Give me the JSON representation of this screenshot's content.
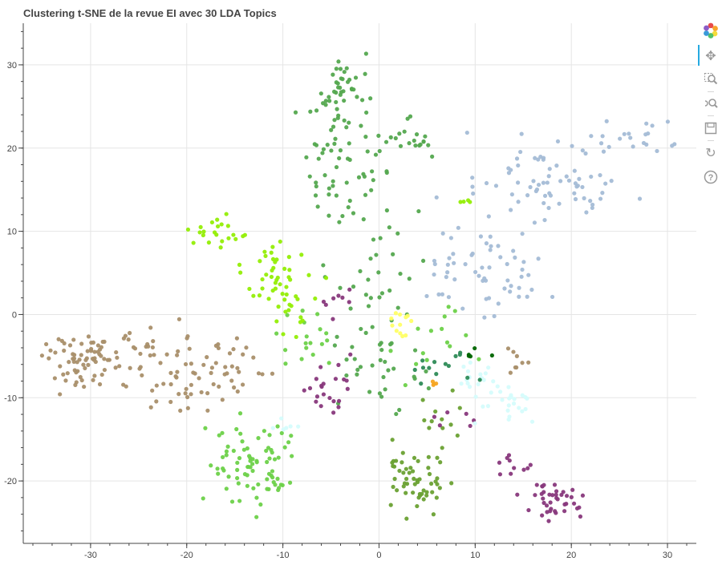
{
  "chart_data": {
    "type": "scatter",
    "title": "Clustering t-SNE de la revue EI avec 30 LDA Topics",
    "xlabel": "",
    "ylabel": "",
    "xlim": [
      -37,
      33
    ],
    "ylim": [
      -27.5,
      35
    ],
    "xticks": [
      -30,
      -20,
      -10,
      0,
      10,
      20,
      30
    ],
    "yticks": [
      -20,
      -10,
      0,
      10,
      20,
      30
    ],
    "grid": true,
    "series": [
      {
        "color": "#a98f6a",
        "clusters": [
          {
            "center": [
              -31,
              -5.5
            ],
            "spread": [
              2.2,
              1.8
            ],
            "n": 70
          },
          {
            "center": [
              -21,
              -7
            ],
            "spread": [
              3.5,
              2.5
            ],
            "n": 65
          },
          {
            "center": [
              -14,
              -7
            ],
            "spread": [
              1.5,
              1.5
            ],
            "n": 12
          },
          {
            "center": [
              -26,
              -3.0
            ],
            "spread": [
              1.2,
              1.0
            ],
            "n": 10
          },
          {
            "center": [
              14.5,
              -4.5
            ],
            "spread": [
              0.8,
              1.2
            ],
            "n": 8
          }
        ]
      },
      {
        "color": "#54a84f",
        "clusters": [
          {
            "center": [
              -4,
              28.5
            ],
            "spread": [
              1.5,
              2.0
            ],
            "n": 35
          },
          {
            "center": [
              -5,
              22.5
            ],
            "spread": [
              2.0,
              2.0
            ],
            "n": 30
          },
          {
            "center": [
              -4,
              15.5
            ],
            "spread": [
              2.5,
              2.0
            ],
            "n": 30
          },
          {
            "center": [
              2.5,
              21
            ],
            "spread": [
              1.8,
              1.2
            ],
            "n": 22
          },
          {
            "center": [
              0,
              5
            ],
            "spread": [
              2.5,
              4.5
            ],
            "n": 35
          },
          {
            "center": [
              0,
              -7
            ],
            "spread": [
              2.5,
              3.0
            ],
            "n": 30
          }
        ]
      },
      {
        "color": "#6dd149",
        "clusters": [
          {
            "center": [
              -13,
              -18
            ],
            "spread": [
              2.5,
              2.5
            ],
            "n": 80
          },
          {
            "center": [
              -7,
              -3
            ],
            "spread": [
              2.0,
              2.0
            ],
            "n": 18
          },
          {
            "center": [
              6,
              -2
            ],
            "spread": [
              2.0,
              2.5
            ],
            "n": 15
          }
        ]
      },
      {
        "color": "#6aa133",
        "clusters": [
          {
            "center": [
              4,
              -20
            ],
            "spread": [
              1.8,
              2.2
            ],
            "n": 55
          },
          {
            "center": [
              6,
              -12
            ],
            "spread": [
              1.5,
              1.5
            ],
            "n": 12
          }
        ]
      },
      {
        "color": "#a4bcd6",
        "clusters": [
          {
            "center": [
              17,
              16
            ],
            "spread": [
              4.5,
              2.5
            ],
            "n": 70
          },
          {
            "center": [
              26,
              21
            ],
            "spread": [
              2.5,
              1.2
            ],
            "n": 22
          },
          {
            "center": [
              12,
              5
            ],
            "spread": [
              2.5,
              2.5
            ],
            "n": 45
          },
          {
            "center": [
              6,
              5
            ],
            "spread": [
              1.5,
              3.0
            ],
            "n": 12
          }
        ]
      },
      {
        "color": "#93ee06",
        "clusters": [
          {
            "center": [
              -17,
              10
            ],
            "spread": [
              1.2,
              1.0
            ],
            "n": 22
          },
          {
            "center": [
              -11,
              6
            ],
            "spread": [
              1.5,
              1.5
            ],
            "n": 22
          },
          {
            "center": [
              -10,
              2.5
            ],
            "spread": [
              1.8,
              1.5
            ],
            "n": 25
          },
          {
            "center": [
              -9,
              -1
            ],
            "spread": [
              0.8,
              0.8
            ],
            "n": 6
          },
          {
            "center": [
              9,
              13.6
            ],
            "spread": [
              0.3,
              0.1
            ],
            "n": 4
          }
        ]
      },
      {
        "color": "#88387c",
        "clusters": [
          {
            "center": [
              18,
              -22.5
            ],
            "spread": [
              1.8,
              1.3
            ],
            "n": 40
          },
          {
            "center": [
              14,
              -18
            ],
            "spread": [
              1.0,
              0.8
            ],
            "n": 10
          },
          {
            "center": [
              -5,
              -8.5
            ],
            "spread": [
              1.2,
              1.5
            ],
            "n": 22
          },
          {
            "center": [
              -4,
              1.5
            ],
            "spread": [
              1.0,
              0.8
            ],
            "n": 8
          },
          {
            "center": [
              8,
              -13
            ],
            "spread": [
              1.5,
              1.0
            ],
            "n": 6
          }
        ]
      },
      {
        "color": "#d5fcfc",
        "clusters": [
          {
            "center": [
              13.5,
              -10.5
            ],
            "spread": [
              1.5,
              1.3
            ],
            "n": 25
          },
          {
            "center": [
              10,
              -8
            ],
            "spread": [
              1.3,
              1.5
            ],
            "n": 18
          },
          {
            "center": [
              -10,
              -13.5
            ],
            "spread": [
              1.0,
              0.5
            ],
            "n": 6
          }
        ]
      },
      {
        "color": "#ffff66",
        "clusters": [
          {
            "center": [
              2,
              -1
            ],
            "spread": [
              0.6,
              1.2
            ],
            "n": 12
          }
        ]
      },
      {
        "color": "#2e8b57",
        "clusters": [
          {
            "center": [
              7,
              -6
            ],
            "spread": [
              1.8,
              1.0
            ],
            "n": 14
          }
        ]
      },
      {
        "color": "#006400",
        "clusters": [
          {
            "center": [
              10,
              -4.5
            ],
            "spread": [
              0.8,
              0.5
            ],
            "n": 5
          }
        ]
      },
      {
        "color": "#f5a623",
        "clusters": [
          {
            "center": [
              6,
              -8.5
            ],
            "spread": [
              0.3,
              0.2
            ],
            "n": 4
          }
        ]
      }
    ]
  },
  "toolbar": {
    "icons": [
      "bokeh-logo-icon",
      "pan-icon",
      "box-zoom-icon",
      "wheel-zoom-icon",
      "save-icon",
      "reset-icon",
      "help-icon"
    ],
    "glyphs": [
      "✿",
      "✥",
      "⌕",
      "⊕",
      "▣",
      "↻",
      "?"
    ]
  }
}
